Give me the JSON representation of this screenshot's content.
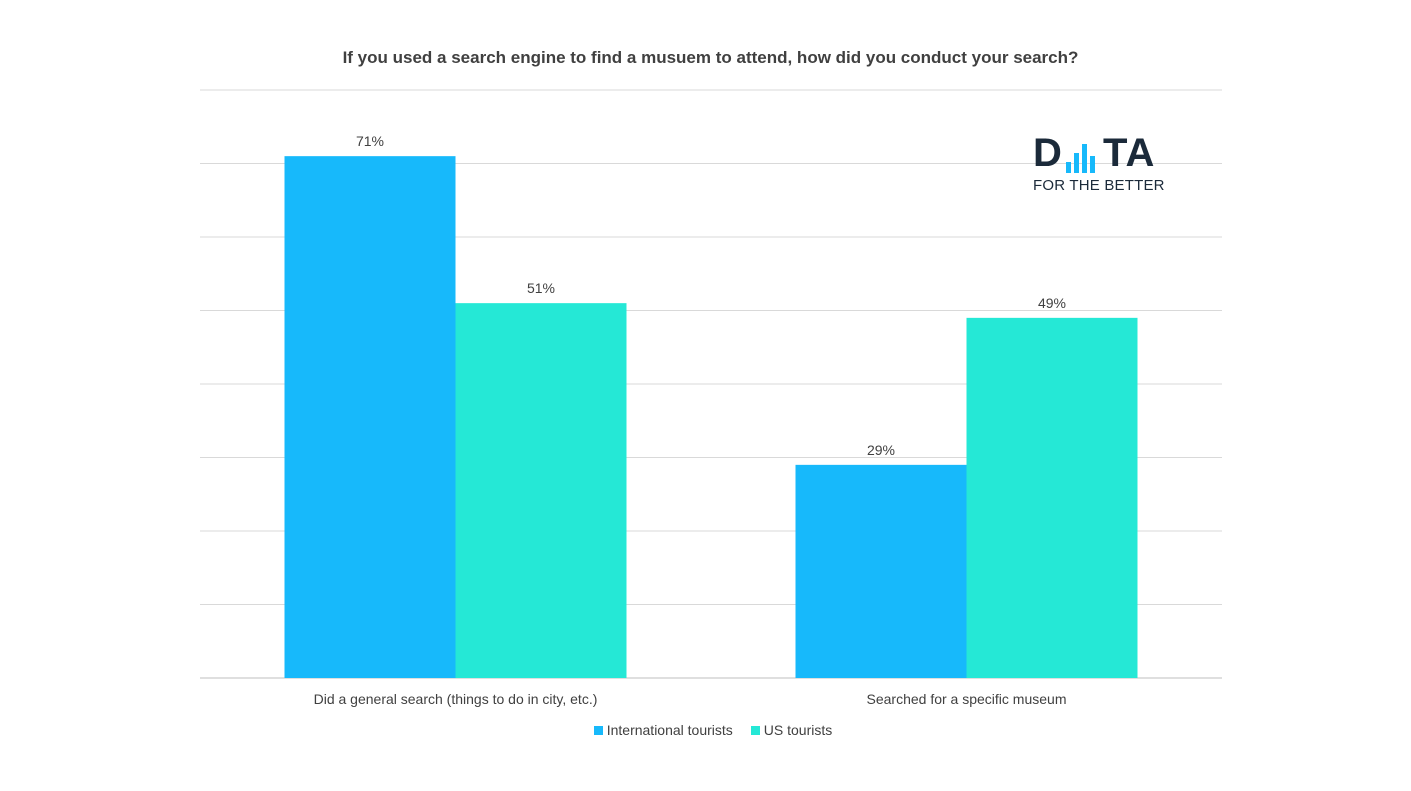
{
  "chart_data": {
    "type": "bar",
    "title": "If you used a search engine to find a musuem to attend, how did you conduct your search?",
    "categories": [
      "Did a general search (things to do in city, etc.)",
      "Searched for a specific museum"
    ],
    "series": [
      {
        "name": "International tourists",
        "values": [
          71,
          29
        ],
        "labels": [
          "71%",
          "29%"
        ],
        "color": "#17b9fb"
      },
      {
        "name": "US tourists",
        "values": [
          51,
          49
        ],
        "labels": [
          "51%",
          "49%"
        ],
        "color": "#25e8d6"
      }
    ],
    "ylim": [
      0,
      80
    ],
    "grid": true,
    "legend_position": "bottom"
  },
  "logo": {
    "text_left": "D",
    "text_right": "TA",
    "subtitle": "FOR THE BETTER",
    "colors": {
      "dark": "#1b2a3a",
      "accent": "#17b9fb"
    }
  }
}
